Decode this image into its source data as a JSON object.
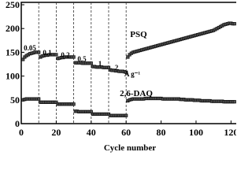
{
  "chart_data": {
    "type": "scatter",
    "x_label": "Cycle number",
    "xlim": [
      0,
      123
    ],
    "xticks": [
      0,
      20,
      40,
      60,
      80,
      100,
      120
    ],
    "ylim": [
      0,
      255
    ],
    "yticks": [
      0,
      50,
      100,
      150,
      200,
      250
    ],
    "vlines": [
      10,
      20,
      30,
      40,
      50,
      60
    ],
    "annotations": [
      "0.05",
      "0.1",
      "0.2",
      "0.5",
      "1",
      "2",
      "A g⁻¹",
      "PSQ",
      "2,6-DAQ"
    ],
    "x": [
      1,
      2,
      3,
      4,
      5,
      6,
      7,
      8,
      9,
      10,
      11,
      12,
      13,
      14,
      15,
      16,
      17,
      18,
      19,
      20,
      21,
      22,
      23,
      24,
      25,
      26,
      27,
      28,
      29,
      30,
      31,
      32,
      33,
      34,
      35,
      36,
      37,
      38,
      39,
      40,
      41,
      42,
      43,
      44,
      45,
      46,
      47,
      48,
      49,
      50,
      51,
      52,
      53,
      54,
      55,
      56,
      57,
      58,
      59,
      60,
      61,
      62,
      63,
      64,
      65,
      66,
      67,
      68,
      69,
      70,
      71,
      72,
      73,
      74,
      75,
      76,
      77,
      78,
      79,
      80,
      81,
      82,
      83,
      84,
      85,
      86,
      87,
      88,
      89,
      90,
      91,
      92,
      93,
      94,
      95,
      96,
      97,
      98,
      99,
      100,
      101,
      102,
      103,
      104,
      105,
      106,
      107,
      108,
      109,
      110,
      111,
      112,
      113,
      114,
      115,
      116,
      117,
      118,
      119,
      120,
      121,
      122
    ],
    "series": [
      {
        "name": "PSQ",
        "color": "#111111",
        "values": [
          135,
          140,
          143,
          145,
          147,
          148,
          149,
          150,
          150,
          150,
          140,
          142,
          143,
          144,
          144,
          145,
          145,
          145,
          145,
          145,
          137,
          138,
          139,
          139,
          140,
          140,
          140,
          140,
          140,
          140,
          128,
          128,
          128,
          128,
          127,
          127,
          127,
          127,
          127,
          127,
          120,
          120,
          119,
          119,
          119,
          119,
          118,
          118,
          118,
          118,
          113,
          112,
          112,
          111,
          111,
          110,
          110,
          110,
          109,
          108,
          140,
          145,
          148,
          150,
          151,
          152,
          153,
          154,
          155,
          156,
          157,
          158,
          159,
          160,
          161,
          162,
          163,
          164,
          165,
          166,
          167,
          168,
          169,
          170,
          171,
          172,
          173,
          174,
          175,
          176,
          177,
          178,
          179,
          180,
          181,
          182,
          183,
          184,
          185,
          186,
          187,
          188,
          189,
          190,
          191,
          192,
          193,
          194,
          195,
          196,
          198,
          200,
          202,
          204,
          206,
          208,
          209,
          210,
          211,
          211,
          210,
          210
        ]
      },
      {
        "name": "2,6-DAQ",
        "color": "#111111",
        "values": [
          50,
          51,
          52,
          52,
          52,
          52,
          52,
          52,
          52,
          52,
          45,
          45,
          45,
          45,
          45,
          45,
          45,
          45,
          45,
          45,
          41,
          41,
          41,
          41,
          41,
          41,
          41,
          41,
          41,
          41,
          26,
          26,
          25,
          25,
          25,
          25,
          25,
          25,
          25,
          25,
          20,
          20,
          20,
          20,
          20,
          20,
          20,
          20,
          20,
          20,
          17,
          17,
          17,
          17,
          17,
          17,
          17,
          17,
          17,
          17,
          48,
          50,
          51,
          52,
          52,
          52,
          52,
          52,
          52,
          52,
          53,
          53,
          53,
          53,
          53,
          53,
          53,
          53,
          53,
          53,
          52,
          52,
          52,
          52,
          52,
          52,
          52,
          52,
          52,
          52,
          51,
          51,
          51,
          50,
          50,
          50,
          50,
          50,
          49,
          49,
          49,
          49,
          48,
          48,
          48,
          48,
          48,
          48,
          47,
          47,
          47,
          47,
          47,
          47,
          47,
          46,
          46,
          46,
          46,
          46,
          46,
          46
        ]
      }
    ]
  }
}
